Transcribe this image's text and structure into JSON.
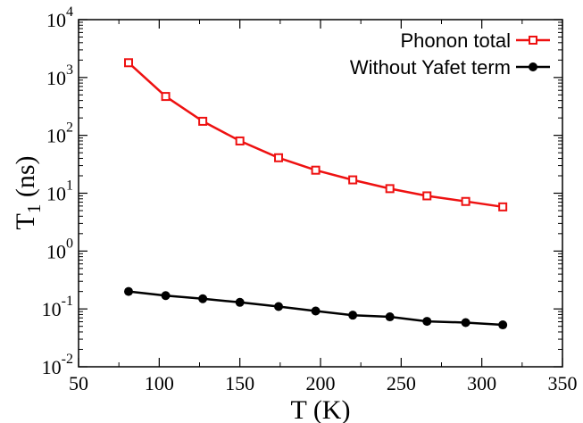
{
  "chart_data": {
    "type": "line",
    "xlabel": "T (K)",
    "ylabel_main": "T",
    "ylabel_sub": "1",
    "ylabel_rest": " (ns)",
    "xlim": [
      50,
      350
    ],
    "ylim": [
      0.01,
      10000
    ],
    "yscale": "log",
    "xticks": [
      50,
      100,
      150,
      200,
      250,
      300,
      350
    ],
    "xtick_labels": [
      "50",
      "100",
      "150",
      "200",
      "250",
      "300",
      "350"
    ],
    "yticks": [
      {
        "base": "10",
        "exp": "-2",
        "value": 0.01
      },
      {
        "base": "10",
        "exp": "-1",
        "value": 0.1
      },
      {
        "base": "10",
        "exp": "0",
        "value": 1
      },
      {
        "base": "10",
        "exp": "1",
        "value": 10
      },
      {
        "base": "10",
        "exp": "2",
        "value": 100
      },
      {
        "base": "10",
        "exp": "3",
        "value": 1000
      },
      {
        "base": "10",
        "exp": "4",
        "value": 10000
      }
    ],
    "legend_position": "top-right",
    "grid": false,
    "series": [
      {
        "name": "Phonon total",
        "color": "#ee1111",
        "marker": "open-square",
        "x": [
          81,
          104,
          127,
          150,
          174,
          197,
          220,
          243,
          266,
          290,
          313
        ],
        "y": [
          1800,
          470,
          175,
          80,
          41,
          25,
          17,
          12,
          9,
          7.2,
          5.8
        ]
      },
      {
        "name": "Without Yafet term",
        "color": "#000000",
        "marker": "filled-circle",
        "x": [
          81,
          104,
          127,
          150,
          174,
          197,
          220,
          243,
          266,
          290,
          313
        ],
        "y": [
          0.2,
          0.17,
          0.15,
          0.13,
          0.11,
          0.092,
          0.078,
          0.073,
          0.061,
          0.058,
          0.053
        ]
      }
    ]
  }
}
